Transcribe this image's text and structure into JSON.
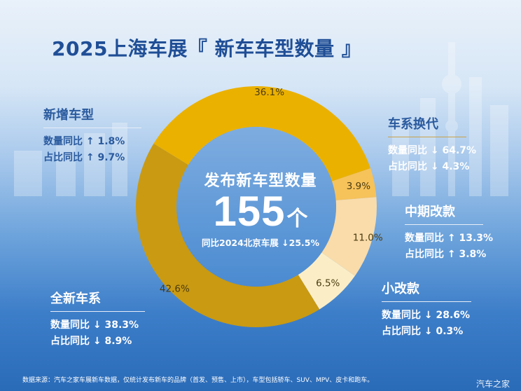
{
  "colors": {
    "seg_new_model": "#ebb100",
    "seg_new_series": "#c99a12",
    "seg_replacement": "#f6c25a",
    "seg_mid_update": "#f9dcaa",
    "seg_minor_update": "#fbeec7",
    "title": "#1f4e96"
  },
  "header": {
    "title": "2025上海车展『 新车车型数量 』"
  },
  "center": {
    "title": "发布新车型数量",
    "number": "155",
    "unit": "个",
    "subtitle": "同比2024北京车展 ↓25.5%"
  },
  "chart_data": {
    "type": "pie",
    "title": "",
    "categories": [
      "新增车型",
      "车系换代",
      "中期改款",
      "小改款",
      "全新车系"
    ],
    "values": [
      36.1,
      3.9,
      11.0,
      6.5,
      42.6
    ],
    "value_labels": [
      "36.1%",
      "3.9%",
      "11.0%",
      "6.5%",
      "42.6%"
    ],
    "total": 155
  },
  "categories": [
    {
      "name": "新增车型",
      "stat1": "数量同比 ↑ 1.8%",
      "stat2": "占比同比 ↑ 9.7%"
    },
    {
      "name": "车系换代",
      "stat1": "数量同比 ↓ 64.7%",
      "stat2": "占比同比 ↓ 4.3%"
    },
    {
      "name": "中期改款",
      "stat1": "数量同比 ↑ 13.3%",
      "stat2": "占比同比 ↑ 3.8%"
    },
    {
      "name": "小改款",
      "stat1": "数量同比 ↓ 28.6%",
      "stat2": "占比同比 ↓ 0.3%"
    },
    {
      "name": "全新车系",
      "stat1": "数量同比 ↓ 38.3%",
      "stat2": "占比同比 ↓ 8.9%"
    }
  ],
  "footnote": "数据来源：汽车之家车展新车数据，仅统计发布新车的品牌（首发、预售、上市），车型包括轿车、SUV、MPV、皮卡和跑车。",
  "watermark": "汽车之家"
}
